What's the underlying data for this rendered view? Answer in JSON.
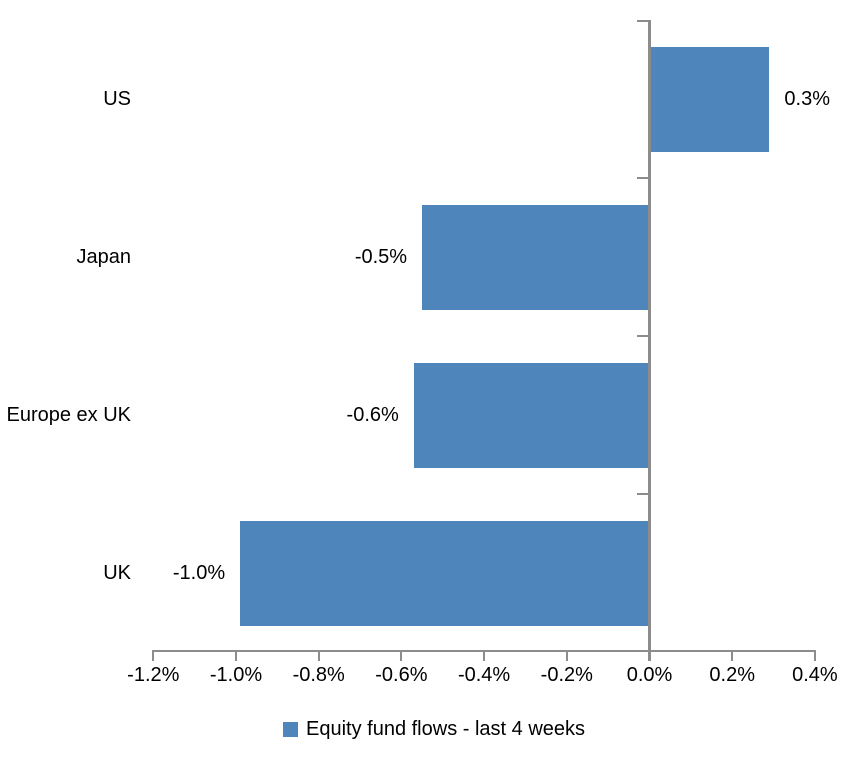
{
  "chart_data": {
    "type": "bar",
    "orientation": "horizontal",
    "title": "",
    "xlabel": "",
    "ylabel": "",
    "categories": [
      "US",
      "Japan",
      "Europe ex UK",
      "UK"
    ],
    "values": [
      0.3,
      -0.5,
      -0.6,
      -1.0
    ],
    "plot_values": [
      0.29,
      -0.55,
      -0.57,
      -0.99
    ],
    "data_labels": [
      "0.3%",
      "-0.5%",
      "-0.6%",
      "-1.0%"
    ],
    "x_tick_labels": [
      "-1.2%",
      "-1.0%",
      "-0.8%",
      "-0.6%",
      "-0.4%",
      "-0.2%",
      "0.0%",
      "0.2%",
      "0.4%"
    ],
    "x_tick_values": [
      -1.2,
      -1.0,
      -0.8,
      -0.6,
      -0.4,
      -0.2,
      0.0,
      0.2,
      0.4
    ],
    "xlim": [
      -1.2,
      0.4
    ],
    "grid": false,
    "legend_position": "bottom-center",
    "legend": [
      {
        "label": "Equity fund flows - last 4 weeks",
        "color": "#4E86BC"
      }
    ],
    "colors": {
      "bar": "#4E86BC",
      "axis": "#8C8C8C",
      "text": "#000000",
      "background": "#FFFFFF"
    }
  }
}
